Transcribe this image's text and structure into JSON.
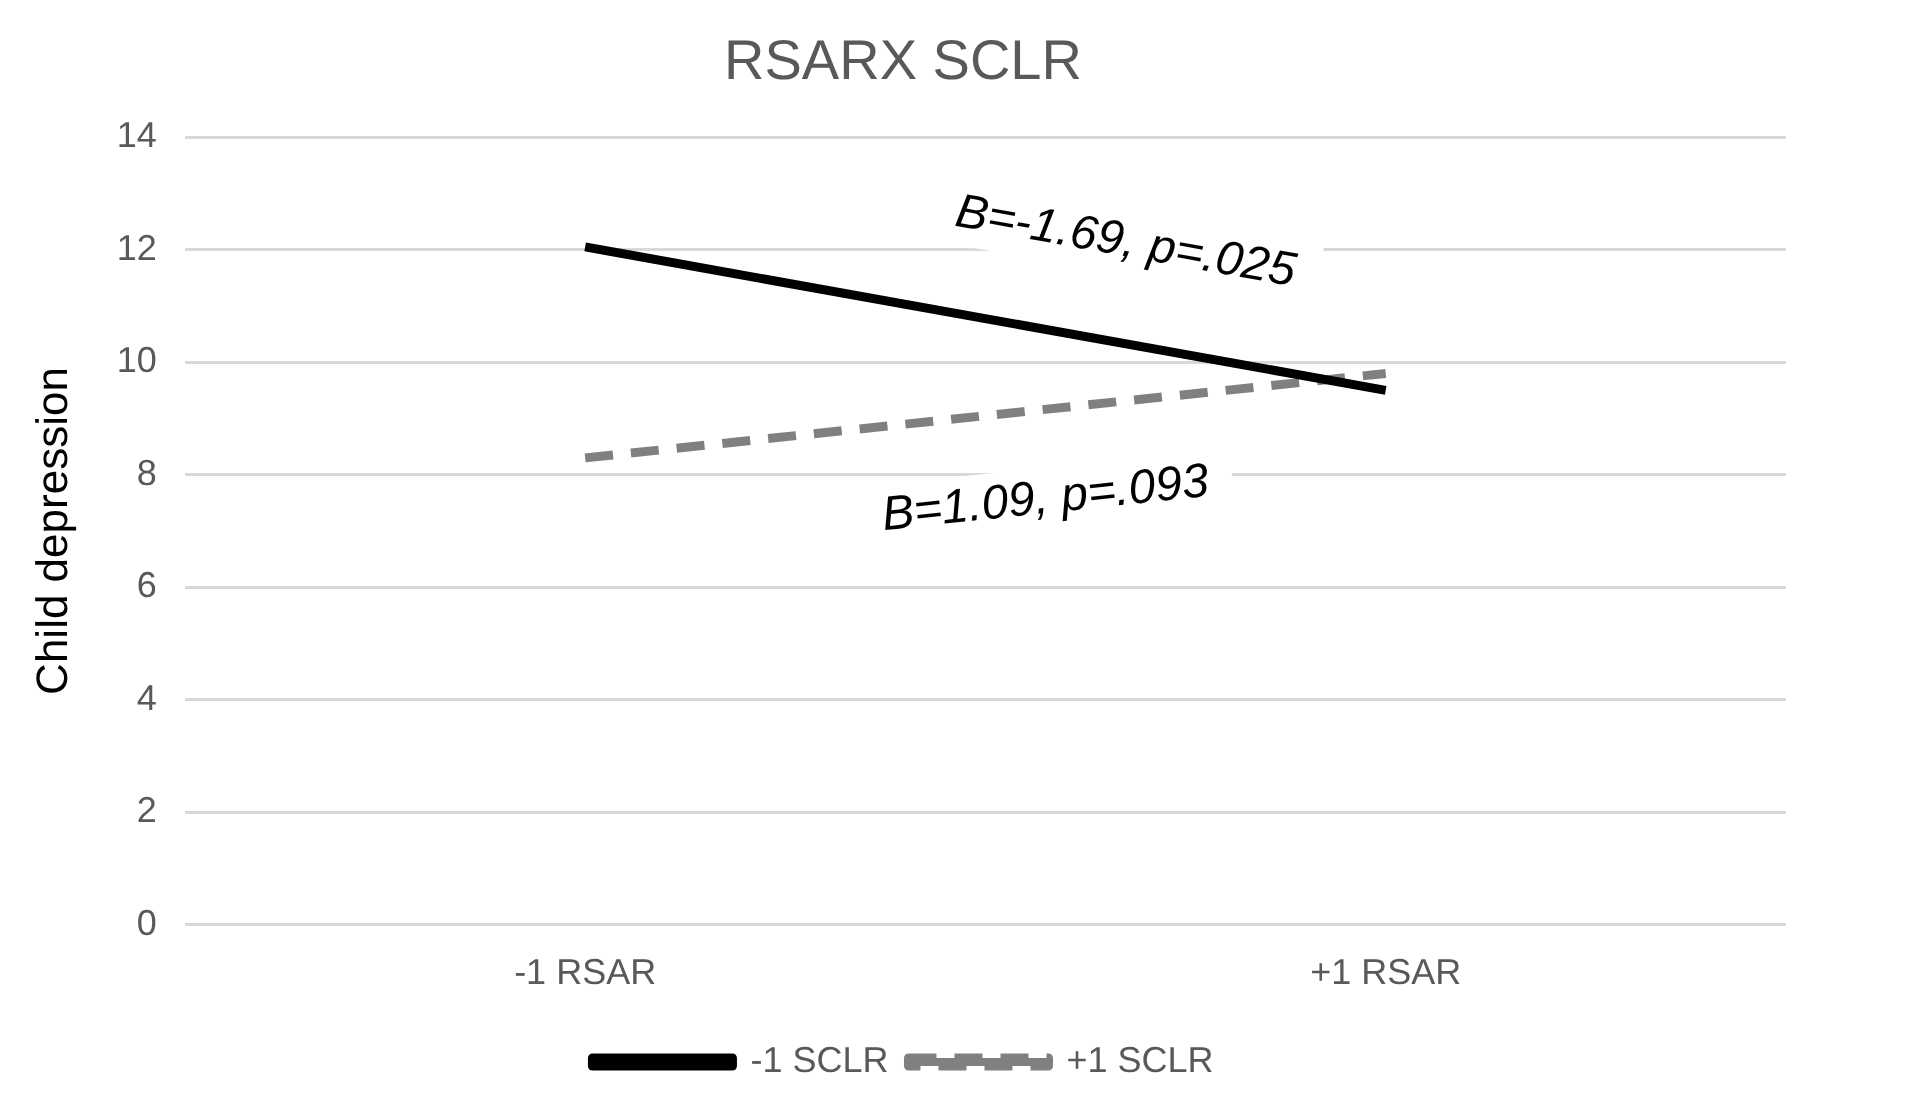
{
  "chart_data": {
    "type": "line",
    "title": "RSARX SCLR",
    "ylabel": "Child depression",
    "categories": [
      "-1 RSAR",
      "+1 RSAR"
    ],
    "series": [
      {
        "name": "-1 SCLR",
        "color": "#000000",
        "values": [
          12.05,
          9.5
        ],
        "line_style": "solid"
      },
      {
        "name": "+1 SCLR",
        "color": "#808080",
        "values": [
          8.3,
          9.8
        ],
        "line_style": "dashed"
      }
    ],
    "ylim": [
      0,
      14
    ],
    "yticks": [
      0,
      2,
      4,
      6,
      8,
      10,
      12,
      14
    ],
    "grid": "y",
    "legend": "bottom",
    "marker": "none",
    "annotations": [
      "B=-1.69, p=.025",
      "B=1.09, p=.093"
    ]
  }
}
